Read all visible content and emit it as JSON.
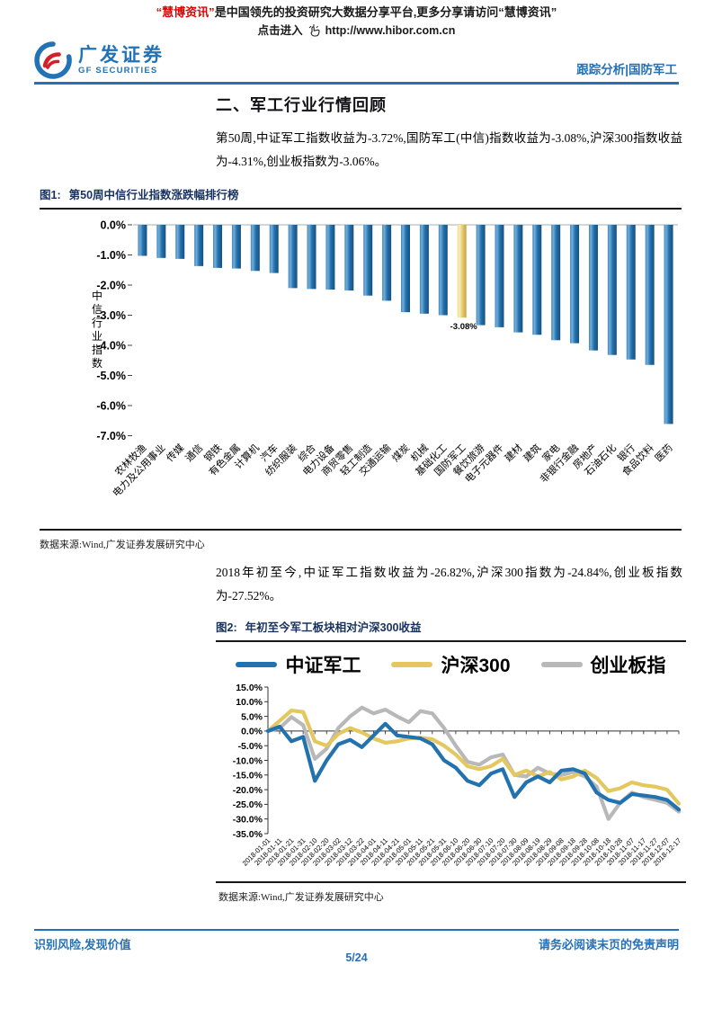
{
  "notice": {
    "brand": "“慧博资讯”",
    "line1_rest": "是中国领先的投资研究大数据分享平台,更多分享请访问“慧博资讯”",
    "click_label": "点击进入",
    "url": "http://www.hibor.com.cn"
  },
  "header": {
    "logo_cn": "广发证券",
    "logo_en": "GF SECURITIES",
    "right_label": "跟踪分析|国防军工"
  },
  "section": {
    "title": "二、军工行业行情回顾",
    "para1": "第50周,中证军工指数收益为-3.72%,国防军工(中信)指数收益为-3.08%,沪深300指数收益为-4.31%,创业板指数为-3.06%。",
    "para2": "2018年初至今,中证军工指数收益为-26.82%,沪深300指数为-24.84%,创业板指数为-27.52%。"
  },
  "fig1": {
    "label": "图1:",
    "title": "第50周中信行业指数涨跌幅排行榜",
    "source": "数据来源:Wind,广发证券发展研究中心",
    "chart_data": {
      "type": "bar",
      "title": "第50周中信行业指数涨跌幅排行榜",
      "ylabel": "中信行业指数",
      "ylim": [
        -7,
        0
      ],
      "ytick_step": 1,
      "ytick_format": "percent_1dp",
      "grid": false,
      "bar_color": "#2272b0",
      "highlight_color": "#e6ce6d",
      "highlight_index": 17,
      "highlight_label": "-3.08%",
      "categories": [
        "农林牧渔",
        "电力及公用事业",
        "传媒",
        "通信",
        "钢铁",
        "有色金属",
        "计算机",
        "汽车",
        "纺织服装",
        "综合",
        "电力设备",
        "商贸零售",
        "轻工制造",
        "交通运输",
        "煤炭",
        "机械",
        "基础化工",
        "国防军工",
        "餐饮旅游",
        "电子元器件",
        "建材",
        "建筑",
        "家电",
        "非银行金融",
        "房地产",
        "石油石化",
        "银行",
        "食品饮料",
        "医药"
      ],
      "values": [
        -1.03,
        -1.1,
        -1.13,
        -1.37,
        -1.43,
        -1.45,
        -1.53,
        -1.6,
        -2.1,
        -2.13,
        -2.15,
        -2.18,
        -2.35,
        -2.52,
        -2.9,
        -2.95,
        -3.0,
        -3.08,
        -3.33,
        -3.4,
        -3.57,
        -3.65,
        -3.83,
        -3.93,
        -4.17,
        -4.32,
        -4.47,
        -4.65,
        -6.61
      ]
    }
  },
  "fig2": {
    "label": "图2:",
    "title": "年初至今军工板块相对沪深300收益",
    "source": "数据来源:Wind,广发证券发展研究中心",
    "chart_data": {
      "type": "line",
      "title": "年初至今军工板块相对沪深300收益",
      "ylim": [
        -35,
        15
      ],
      "ytick_step": 5,
      "ytick_format": "percent_1dp",
      "grid": false,
      "legend_position": "top",
      "x": [
        "2018-01-01",
        "2018-01-11",
        "2018-01-21",
        "2018-01-31",
        "2018-02-10",
        "2018-02-20",
        "2018-03-02",
        "2018-03-12",
        "2018-03-22",
        "2018-04-01",
        "2018-04-11",
        "2018-04-21",
        "2018-05-01",
        "2018-05-11",
        "2018-05-21",
        "2018-05-31",
        "2018-06-10",
        "2018-06-20",
        "2018-06-30",
        "2018-07-10",
        "2018-07-20",
        "2018-07-30",
        "2018-08-09",
        "2018-08-19",
        "2018-08-29",
        "2018-09-08",
        "2018-09-18",
        "2018-09-28",
        "2018-10-08",
        "2018-10-18",
        "2018-10-28",
        "2018-11-07",
        "2018-11-17",
        "2018-11-27",
        "2018-12-07",
        "2018-12-17"
      ],
      "series": [
        {
          "name": "中证军工",
          "color": "#2272b0",
          "values": [
            0,
            1.5,
            -3.5,
            -2,
            -17,
            -10,
            -4.5,
            -3,
            -5.5,
            -1.5,
            2.5,
            -1.5,
            -2,
            -2.5,
            -4.5,
            -10,
            -12.5,
            -17,
            -18.5,
            -14.5,
            -13,
            -22.5,
            -17.5,
            -15.5,
            -17.5,
            -13.5,
            -13,
            -14.5,
            -21,
            -23.5,
            -24.5,
            -21.5,
            -22,
            -22.5,
            -23.5,
            -26.8
          ]
        },
        {
          "name": "沪深300",
          "color": "#e3c75f",
          "values": [
            0,
            3.5,
            7,
            6.5,
            -3.5,
            -5,
            -1,
            1,
            -0.5,
            -2.5,
            -4,
            -3.5,
            -2.5,
            -2.3,
            -2.8,
            -5,
            -8,
            -12,
            -13,
            -12,
            -9.5,
            -15,
            -13.5,
            -15.5,
            -14,
            -16.5,
            -15.5,
            -13.5,
            -16,
            -20.5,
            -19.5,
            -17.5,
            -18.5,
            -19,
            -20,
            -24.8
          ]
        },
        {
          "name": "创业板指",
          "color": "#b8b8b8",
          "values": [
            0,
            1,
            4.8,
            2,
            -9.5,
            -6,
            1,
            5,
            8,
            6,
            7.3,
            5,
            3,
            6.8,
            6,
            1,
            -5,
            -10.5,
            -11.5,
            -9,
            -8,
            -15,
            -15.5,
            -12.5,
            -14.5,
            -15,
            -14,
            -15.5,
            -19,
            -30,
            -24.5,
            -21,
            -22.5,
            -23.5,
            -24.5,
            -27.5
          ]
        }
      ]
    }
  },
  "footer": {
    "left": "识别风险,发现价值",
    "right": "请务必阅读末页的免责声明",
    "page_label": "5/24"
  },
  "colors": {
    "accent_blue": "#2471b8",
    "brand_red": "#e00000",
    "navy": "#17325e",
    "bar_blue": "#2272b0",
    "bar_yellow": "#e6ce6d",
    "line_gray": "#b8b8b8",
    "line_yellow": "#e3c75f"
  }
}
